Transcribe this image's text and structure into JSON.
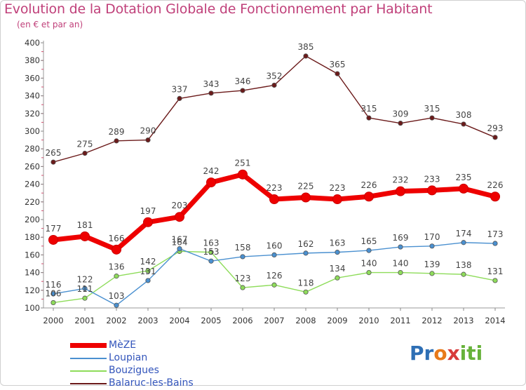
{
  "title": "Evolution de la Dotation Globale de Fonctionnement par Habitant",
  "subtitle": "(en € et par an)",
  "brand": {
    "p1": "Pr",
    "p2": "o",
    "p3": "x",
    "p4": "iti"
  },
  "chart_data": {
    "type": "line",
    "title": "Evolution de la Dotation Globale de Fonctionnement par Habitant",
    "subtitle": "(en € et par an)",
    "xlabel": "",
    "ylabel": "",
    "x": [
      "2000",
      "2001",
      "2002",
      "2003",
      "2004",
      "2005",
      "2006",
      "2007",
      "2008",
      "2009",
      "2010",
      "2011",
      "2012",
      "2013",
      "2014"
    ],
    "ylim": [
      100,
      400
    ],
    "yticks": [
      100,
      120,
      140,
      160,
      180,
      200,
      220,
      240,
      260,
      280,
      300,
      320,
      340,
      360,
      380,
      400
    ],
    "grid": false,
    "legend": "bottom-left",
    "series": [
      {
        "name": "MèZE",
        "color": "#ee0000",
        "values": [
          177,
          181,
          166,
          197,
          203,
          242,
          251,
          223,
          225,
          223,
          226,
          232,
          233,
          235,
          226
        ]
      },
      {
        "name": "Loupian",
        "color": "#4a90d0",
        "values": [
          116,
          122,
          103,
          131,
          167,
          153,
          158,
          160,
          162,
          163,
          165,
          169,
          170,
          174,
          173
        ]
      },
      {
        "name": "Bouzigues",
        "color": "#8edc5a",
        "values": [
          106,
          111,
          136,
          142,
          164,
          163,
          123,
          126,
          118,
          134,
          140,
          140,
          139,
          138,
          131
        ]
      },
      {
        "name": "Balaruc-les-Bains",
        "color": "#6b1a1a",
        "values": [
          265,
          275,
          289,
          290,
          337,
          343,
          346,
          352,
          385,
          365,
          315,
          309,
          315,
          308,
          293
        ]
      }
    ]
  }
}
